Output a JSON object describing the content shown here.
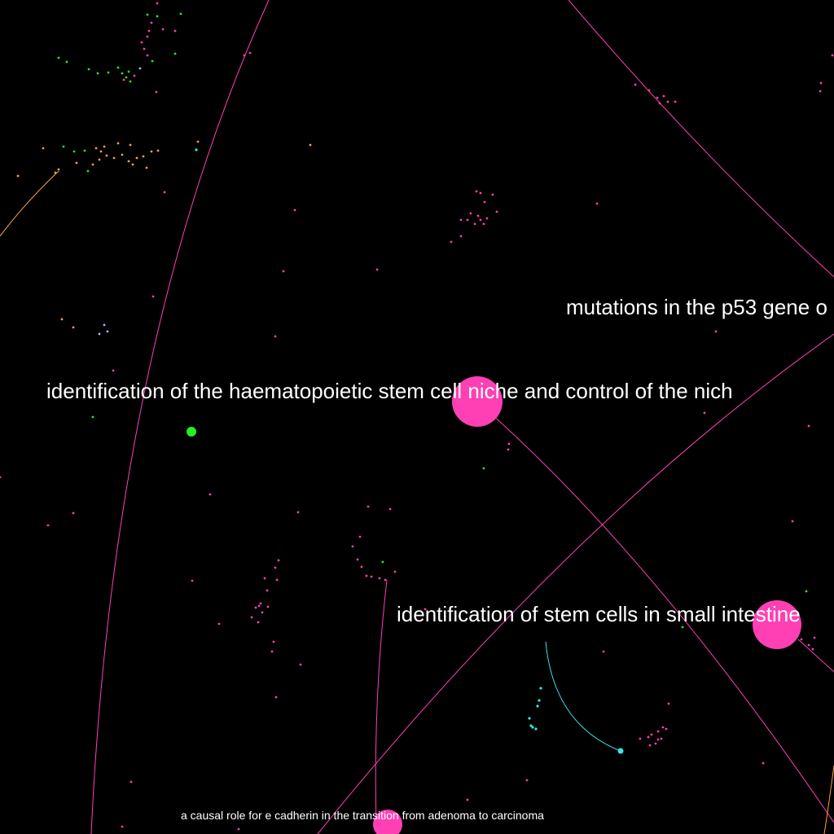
{
  "colors": {
    "background": "#000000",
    "pink": "#ff3fb4",
    "green": "#22ee22",
    "orange": "#ffa040",
    "cyan": "#33e6e6",
    "lavender": "#c8a8ff",
    "label": "#ffffff"
  },
  "labels": {
    "p53": "mutations in the p53 gene o",
    "niche": "identification of the haematopoietic stem cell niche and control of the nich",
    "intestine": "identification of stem cells in small intestine",
    "cadherin": "a causal role for e cadherin in the transition from adenoma to carcinoma"
  }
}
